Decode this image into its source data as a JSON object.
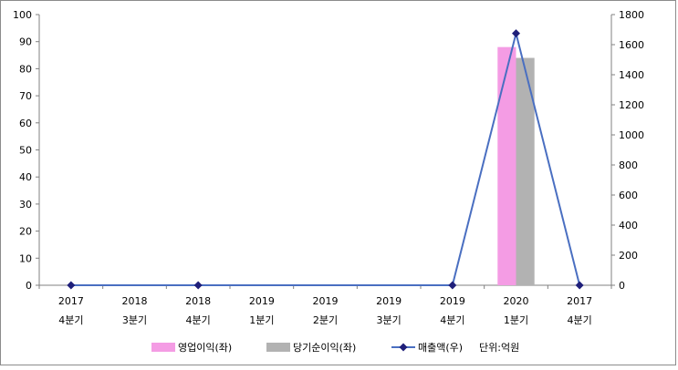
{
  "chart_data": {
    "type": "bar",
    "categories": [
      [
        "2017",
        "4분기"
      ],
      [
        "2018",
        "3분기"
      ],
      [
        "2018",
        "4분기"
      ],
      [
        "2019",
        "1분기"
      ],
      [
        "2019",
        "2분기"
      ],
      [
        "2019",
        "3분기"
      ],
      [
        "2019",
        "4분기"
      ],
      [
        "2020",
        "1분기"
      ],
      [
        "2017",
        "4분기"
      ]
    ],
    "y_left": {
      "min": 0,
      "max": 100,
      "step": 10,
      "ticks": [
        "0",
        "10",
        "20",
        "30",
        "40",
        "50",
        "60",
        "70",
        "80",
        "90",
        "100"
      ]
    },
    "y_right": {
      "min": 0,
      "max": 1800,
      "step": 200,
      "ticks": [
        "0",
        "200",
        "400",
        "600",
        "800",
        "1000",
        "1200",
        "1400",
        "1600",
        "1800"
      ]
    },
    "series": [
      {
        "name": "영업이익(좌)",
        "kind": "bar",
        "axis": "left",
        "color": "#f49ce4",
        "values": [
          null,
          null,
          null,
          null,
          null,
          null,
          null,
          88,
          null
        ]
      },
      {
        "name": "당기순이익(좌)",
        "kind": "bar",
        "axis": "left",
        "color": "#b2b2b2",
        "values": [
          null,
          null,
          null,
          null,
          null,
          null,
          null,
          84,
          null
        ]
      },
      {
        "name": "매출액(우)",
        "kind": "line",
        "axis": "right",
        "color": "#4a6fc1",
        "marker_color": "#1f1f7a",
        "values": [
          0,
          null,
          0,
          null,
          null,
          null,
          0,
          1675,
          0
        ]
      }
    ],
    "unit_note": "단위:억원",
    "grid": false,
    "legend": "bottom"
  }
}
